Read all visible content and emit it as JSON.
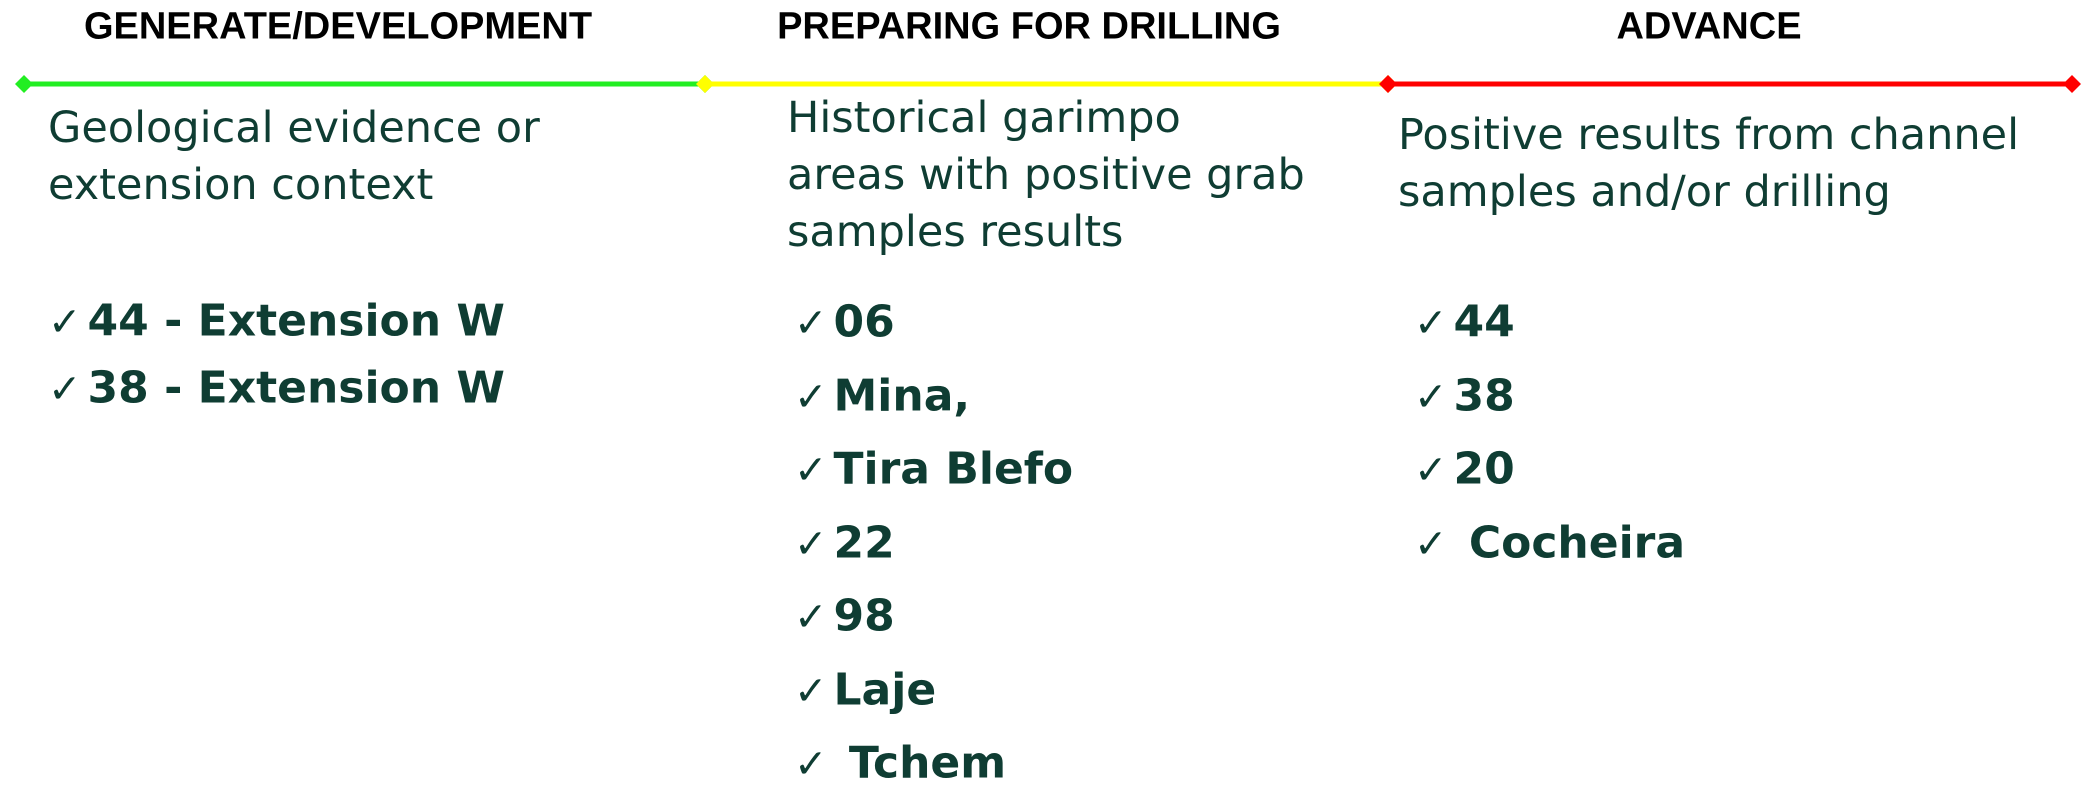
{
  "columns": [
    {
      "heading": "GENERATE/DEVELOPMENT",
      "color": "#22ee22",
      "description": [
        "Geological evidence or",
        "extension context"
      ],
      "items": [
        {
          "check": "✓",
          "label": "44 - Extension W"
        },
        {
          "check": "✓",
          "label": "38 - Extension W"
        }
      ]
    },
    {
      "heading": "PREPARING FOR DRILLING",
      "color": "#ffff00",
      "description": [
        "Historical garimpo",
        "areas with positive grab",
        "samples results"
      ],
      "items": [
        {
          "check": "✓",
          "label": "06"
        },
        {
          "check": "✓",
          "label": "Mina,"
        },
        {
          "check": "✓",
          "label": "Tira Blefo"
        },
        {
          "check": "✓",
          "label": "22"
        },
        {
          "check": "✓",
          "label": "98"
        },
        {
          "check": "✓",
          "label": "Laje"
        },
        {
          "check": "✓",
          "label": " Tchem"
        }
      ]
    },
    {
      "heading": "ADVANCE",
      "color": "#ff0000",
      "description": [
        "Positive results from channel",
        "samples and/or drilling"
      ],
      "items": [
        {
          "check": "✓",
          "label": "44"
        },
        {
          "check": "✓",
          "label": "38"
        },
        {
          "check": "✓",
          "label": "20"
        },
        {
          "check": "✓",
          "label": " Cocheira"
        }
      ]
    }
  ]
}
